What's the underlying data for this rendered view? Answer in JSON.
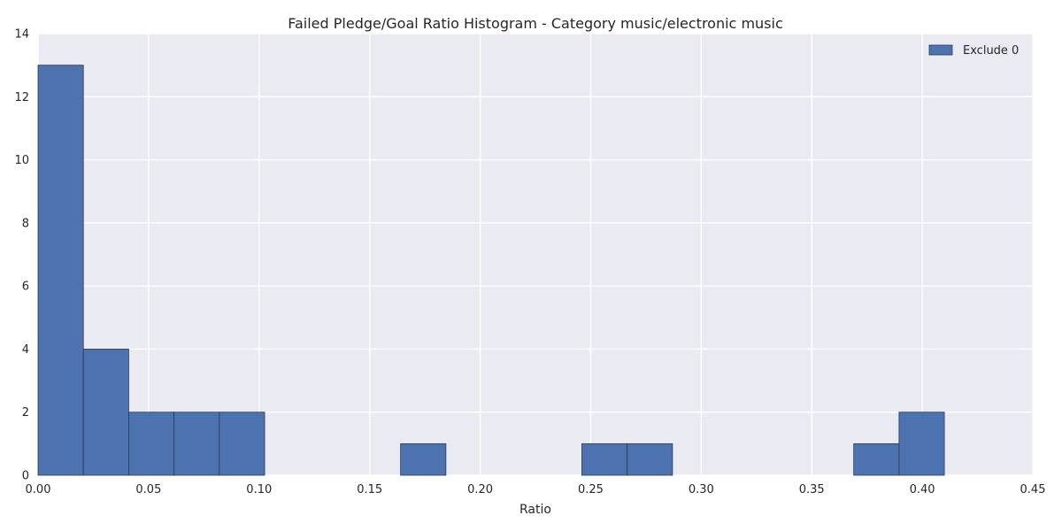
{
  "chart_data": {
    "type": "bar",
    "title": "Failed Pledge/Goal Ratio Histogram - Category music/electronic music",
    "xlabel": "Ratio",
    "ylabel": "",
    "xlim": [
      0.0,
      0.45
    ],
    "ylim": [
      0,
      14
    ],
    "xticks": [
      "0.00",
      "0.05",
      "0.10",
      "0.15",
      "0.20",
      "0.25",
      "0.30",
      "0.35",
      "0.40",
      "0.45"
    ],
    "yticks": [
      "0",
      "2",
      "4",
      "6",
      "8",
      "10",
      "12",
      "14"
    ],
    "grid": true,
    "legend_position": "top-right",
    "series": [
      {
        "name": "Exclude 0",
        "color": "#4c72b0",
        "bins": [
          {
            "start": 0.0,
            "end": 0.0205,
            "count": 13
          },
          {
            "start": 0.0205,
            "end": 0.041,
            "count": 4
          },
          {
            "start": 0.041,
            "end": 0.0615,
            "count": 2
          },
          {
            "start": 0.0615,
            "end": 0.082,
            "count": 2
          },
          {
            "start": 0.082,
            "end": 0.1025,
            "count": 2
          },
          {
            "start": 0.1025,
            "end": 0.123,
            "count": 0
          },
          {
            "start": 0.123,
            "end": 0.1435,
            "count": 0
          },
          {
            "start": 0.1435,
            "end": 0.164,
            "count": 0
          },
          {
            "start": 0.164,
            "end": 0.1845,
            "count": 1
          },
          {
            "start": 0.1845,
            "end": 0.205,
            "count": 0
          },
          {
            "start": 0.205,
            "end": 0.2255,
            "count": 0
          },
          {
            "start": 0.2255,
            "end": 0.246,
            "count": 0
          },
          {
            "start": 0.246,
            "end": 0.2665,
            "count": 1
          },
          {
            "start": 0.2665,
            "end": 0.287,
            "count": 1
          },
          {
            "start": 0.287,
            "end": 0.3075,
            "count": 0
          },
          {
            "start": 0.3075,
            "end": 0.328,
            "count": 0
          },
          {
            "start": 0.328,
            "end": 0.3485,
            "count": 0
          },
          {
            "start": 0.3485,
            "end": 0.369,
            "count": 0
          },
          {
            "start": 0.369,
            "end": 0.3895,
            "count": 1
          },
          {
            "start": 0.3895,
            "end": 0.41,
            "count": 2
          }
        ]
      }
    ]
  }
}
